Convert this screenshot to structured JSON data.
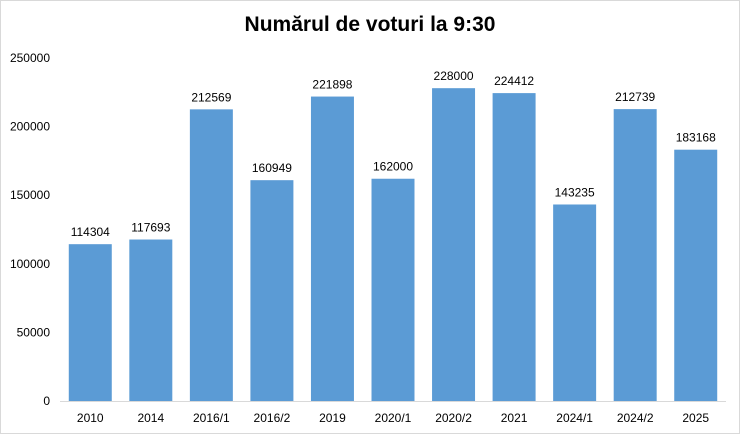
{
  "chart_data": {
    "type": "bar",
    "title": "Numărul de voturi la 9:30",
    "categories": [
      "2010",
      "2014",
      "2016/1",
      "2016/2",
      "2019",
      "2020/1",
      "2020/2",
      "2021",
      "2024/1",
      "2024/2",
      "2025"
    ],
    "values": [
      114304,
      117693,
      212569,
      160949,
      221898,
      162000,
      228000,
      224412,
      143235,
      212739,
      183168
    ],
    "data_labels": [
      "114304",
      "117693",
      "212569",
      "160949",
      "221898",
      "162000",
      "228000",
      "224412",
      "143235",
      "212739",
      "183168"
    ],
    "yticks": [
      0,
      50000,
      100000,
      150000,
      200000,
      250000
    ],
    "ytick_labels": [
      "0",
      "50000",
      "100000",
      "150000",
      "200000",
      "250000"
    ],
    "ylim": [
      0,
      250000
    ],
    "grid": false,
    "legend": "none",
    "bar_color": "#5b9bd5",
    "axis_color": "#d9d9d9"
  }
}
